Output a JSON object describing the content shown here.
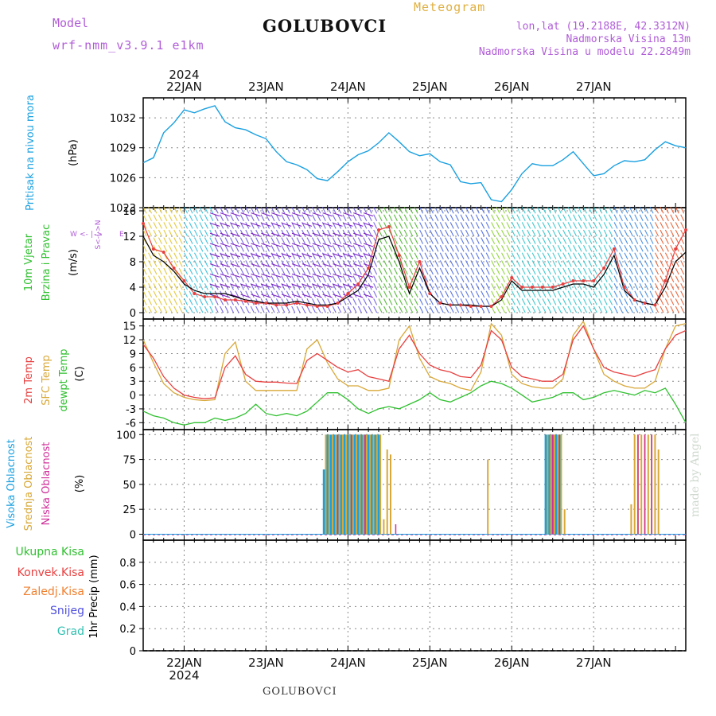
{
  "header": {
    "model_label": "Model",
    "model_name": "wrf-nmm_v3.9.1 e1km",
    "station": "GOLUBOVCI",
    "product": "Meteogram",
    "coords": "lon,lat (19.2188E, 42.3312N)",
    "elevation": "Nadmorska Visina 13m",
    "model_elevation": "Nadmorska Visina u modelu 22.2849m",
    "year": "2024"
  },
  "footer": {
    "station": "GOLUBOVCI",
    "credit": "made by Angel"
  },
  "colors": {
    "pressure": "#1aa0e0",
    "temp2m": "#e84040",
    "sfc": "#d8a838",
    "dewpt": "#30c030",
    "high_cloud": "#1aa0e0",
    "mid_cloud": "#d8a838",
    "low_cloud": "#d0309a",
    "wind_speed": "#000000",
    "gust": "#e84040",
    "feather": "#8020c0"
  },
  "chart_data": [
    {
      "type": "line",
      "panel": "pressure",
      "ylabel": "Pritisak na nivou mora",
      "unit": "(hPa)",
      "ylim": [
        1023,
        1034
      ],
      "yticks": [
        1023,
        1026,
        1029,
        1032
      ],
      "x_dates": [
        "22JAN",
        "23JAN",
        "24JAN",
        "25JAN",
        "26JAN",
        "27JAN"
      ],
      "x_hours": [
        0,
        6,
        12,
        18,
        24,
        30,
        36,
        42,
        48,
        54,
        60,
        66,
        72,
        78,
        84,
        90,
        96,
        102,
        108,
        114,
        120,
        126,
        132,
        138
      ],
      "x_offset_hours": -12,
      "x_values": [
        -12,
        -9,
        -6,
        -3,
        0,
        3,
        6,
        9,
        12,
        15,
        18,
        21,
        24,
        27,
        30,
        33,
        36,
        39,
        42,
        45,
        48,
        51,
        54,
        57,
        60,
        63,
        66,
        69,
        72,
        75,
        78,
        81,
        84,
        87,
        90,
        93,
        96,
        99,
        102,
        105,
        108,
        111,
        114,
        117,
        120,
        123,
        126,
        129,
        132,
        135,
        138,
        141,
        144,
        147
      ],
      "series": [
        {
          "values": [
            1027.5,
            1028.0,
            1030.5,
            1031.5,
            1032.8,
            1032.5,
            1032.9,
            1033.2,
            1031.6,
            1031.0,
            1030.8,
            1030.3,
            1029.9,
            1028.6,
            1027.6,
            1027.3,
            1026.8,
            1025.9,
            1025.7,
            1026.6,
            1027.6,
            1028.3,
            1028.7,
            1029.5,
            1030.5,
            1029.6,
            1028.6,
            1028.2,
            1028.4,
            1027.6,
            1027.3,
            1025.6,
            1025.4,
            1025.5,
            1023.8,
            1023.6,
            1024.8,
            1026.4,
            1027.4,
            1027.2,
            1027.2,
            1027.8,
            1028.6,
            1027.4,
            1026.2,
            1026.4,
            1027.2,
            1027.7,
            1027.6,
            1027.8,
            1028.8,
            1029.6,
            1029.2,
            1029.0
          ]
        }
      ]
    },
    {
      "type": "line",
      "panel": "wind",
      "ylabel": "10m Vjetar Brzina i Pravac",
      "unit": "(m/s)",
      "ylim": [
        -1,
        16.5
      ],
      "yticks": [
        0,
        4,
        8,
        12,
        16
      ],
      "compass_labels": [
        "W",
        "<-",
        "|",
        "->",
        "E",
        "S<-|->N"
      ],
      "x_values": [
        -12,
        -9,
        -6,
        -3,
        0,
        3,
        6,
        9,
        12,
        15,
        18,
        21,
        24,
        27,
        30,
        33,
        36,
        39,
        42,
        45,
        48,
        51,
        54,
        57,
        60,
        63,
        66,
        69,
        72,
        75,
        78,
        81,
        84,
        87,
        90,
        93,
        96,
        99,
        102,
        105,
        108,
        111,
        114,
        117,
        120,
        123,
        126,
        129,
        132,
        135,
        138,
        141,
        144,
        147
      ],
      "series": [
        {
          "name_key": "speed",
          "values": [
            12.0,
            9.0,
            8.0,
            6.5,
            4.5,
            3.5,
            3.0,
            3.0,
            3.0,
            2.5,
            2.0,
            1.8,
            1.5,
            1.5,
            1.5,
            1.8,
            1.5,
            1.2,
            1.2,
            1.5,
            2.5,
            3.5,
            6.0,
            11.5,
            12.0,
            8.0,
            3.0,
            7.0,
            3.0,
            1.5,
            1.2,
            1.2,
            1.2,
            1.0,
            1.0,
            2.0,
            5.0,
            3.5,
            3.5,
            3.5,
            3.5,
            4.0,
            4.5,
            4.5,
            4.0,
            6.0,
            9.0,
            3.5,
            2.0,
            1.5,
            1.2,
            4.0,
            8.0,
            9.5
          ]
        },
        {
          "name_key": "gust",
          "values": [
            14.0,
            10.0,
            9.5,
            7.0,
            5.0,
            3.0,
            2.5,
            2.5,
            2.0,
            2.0,
            1.8,
            1.5,
            1.5,
            1.2,
            1.2,
            1.5,
            1.2,
            1.0,
            1.0,
            1.5,
            3.0,
            4.5,
            7.0,
            13.0,
            13.5,
            9.0,
            4.0,
            8.0,
            3.0,
            1.5,
            1.2,
            1.2,
            1.0,
            1.0,
            1.0,
            2.5,
            5.5,
            4.0,
            4.0,
            4.0,
            4.0,
            4.5,
            5.0,
            5.0,
            5.0,
            7.0,
            10.0,
            4.0,
            2.0,
            1.5,
            1.2,
            5.0,
            10.0,
            13.0
          ]
        }
      ],
      "direction_regimes": [
        {
          "from_h": -12,
          "to_h": 0,
          "color": "#e0c020"
        },
        {
          "from_h": 0,
          "to_h": 9,
          "color": "#20b8d8"
        },
        {
          "from_h": 9,
          "to_h": 57,
          "color": "#6050e0"
        },
        {
          "from_h": 57,
          "to_h": 69,
          "color": "#40b020"
        },
        {
          "from_h": 69,
          "to_h": 90,
          "color": "#4060e0"
        },
        {
          "from_h": 90,
          "to_h": 96,
          "color": "#80d020"
        },
        {
          "from_h": 96,
          "to_h": 126,
          "color": "#20c0c8"
        },
        {
          "from_h": 126,
          "to_h": 138,
          "color": "#3080e0"
        },
        {
          "from_h": 138,
          "to_h": 147,
          "color": "#e85020"
        }
      ]
    },
    {
      "type": "line",
      "panel": "temperature",
      "ylabels": [
        "2m Temp",
        "SFC Temp",
        "dewpt Temp"
      ],
      "unit": "(C)",
      "ylim": [
        -7.5,
        16.5
      ],
      "yticks": [
        -6,
        -3,
        0,
        3,
        6,
        9,
        12,
        15
      ],
      "x_values": [
        -12,
        -9,
        -6,
        -3,
        0,
        3,
        6,
        9,
        12,
        15,
        18,
        21,
        24,
        27,
        30,
        33,
        36,
        39,
        42,
        45,
        48,
        51,
        54,
        57,
        60,
        63,
        66,
        69,
        72,
        75,
        78,
        81,
        84,
        87,
        90,
        93,
        96,
        99,
        102,
        105,
        108,
        111,
        114,
        117,
        120,
        123,
        126,
        129,
        132,
        135,
        138,
        141,
        144,
        147
      ],
      "series": [
        {
          "name_key": "temp2m",
          "values": [
            11.0,
            8.0,
            4.0,
            1.5,
            0.0,
            -0.5,
            -0.8,
            -0.6,
            6.0,
            8.5,
            4.5,
            3.0,
            2.8,
            2.8,
            2.6,
            2.5,
            7.5,
            9.0,
            7.5,
            6.0,
            5.0,
            5.5,
            4.0,
            3.5,
            3.0,
            10.0,
            13.0,
            9.0,
            6.5,
            5.5,
            5.0,
            4.0,
            3.8,
            6.5,
            14.0,
            12.0,
            6.0,
            4.0,
            3.5,
            3.0,
            3.0,
            4.5,
            12.0,
            15.0,
            10.0,
            6.0,
            5.0,
            4.5,
            4.0,
            4.8,
            5.5,
            10.0,
            13.0,
            14.0
          ]
        },
        {
          "name_key": "sfc",
          "values": [
            12.0,
            7.0,
            2.5,
            0.5,
            -0.5,
            -1.0,
            -1.2,
            -1.0,
            9.0,
            11.5,
            3.0,
            1.0,
            1.0,
            1.0,
            1.0,
            1.0,
            10.0,
            12.0,
            7.0,
            3.5,
            2.0,
            2.0,
            1.0,
            1.0,
            1.5,
            12.0,
            15.0,
            8.0,
            4.0,
            3.0,
            2.5,
            1.5,
            1.0,
            5.0,
            15.5,
            13.0,
            4.5,
            2.5,
            1.8,
            1.5,
            1.5,
            3.5,
            13.0,
            16.0,
            10.0,
            4.5,
            3.0,
            2.0,
            1.5,
            1.5,
            3.0,
            10.0,
            15.0,
            15.5
          ]
        },
        {
          "name_key": "dewpt",
          "values": [
            -3.5,
            -4.5,
            -5.0,
            -6.0,
            -6.5,
            -6.0,
            -6.0,
            -5.0,
            -5.5,
            -5.0,
            -4.0,
            -2.0,
            -4.0,
            -4.5,
            -4.0,
            -4.5,
            -3.5,
            -1.5,
            0.5,
            0.5,
            -1.0,
            -3.0,
            -4.0,
            -3.0,
            -2.5,
            -3.0,
            -2.0,
            -1.0,
            0.5,
            -1.0,
            -1.5,
            -0.5,
            0.5,
            2.0,
            3.0,
            2.5,
            1.5,
            0.0,
            -1.5,
            -1.0,
            -0.5,
            0.5,
            0.5,
            -1.0,
            -0.5,
            0.5,
            1.0,
            0.5,
            0.0,
            1.0,
            0.5,
            1.5,
            -2.0,
            -6.0
          ]
        }
      ]
    },
    {
      "type": "bar",
      "panel": "cloud",
      "ylabels": [
        "Visoka Oblacnost",
        "Srednja Oblacnost",
        "Niska Oblacnost"
      ],
      "unit": "(%)",
      "ylim": [
        -6,
        105
      ],
      "yticks": [
        0,
        25,
        50,
        75,
        100
      ],
      "series": [
        {
          "name_key": "high",
          "x": [
            41,
            42,
            43,
            44,
            45,
            46,
            47,
            48,
            49,
            50,
            51,
            52,
            53,
            54,
            55,
            56,
            57,
            106,
            107,
            108,
            109,
            110
          ],
          "values": [
            65,
            100,
            100,
            100,
            100,
            100,
            100,
            100,
            100,
            100,
            100,
            100,
            100,
            100,
            100,
            100,
            100,
            100,
            100,
            100,
            100,
            100
          ]
        },
        {
          "name_key": "mid",
          "x": [
            41.5,
            42.5,
            43.5,
            44.5,
            45.5,
            46.5,
            47.5,
            48.5,
            49.5,
            50.5,
            51.5,
            52.5,
            53.5,
            54.5,
            55.5,
            56.5,
            57.5,
            58.5,
            59.5,
            60.5,
            89,
            106.5,
            107.5,
            108.5,
            109.5,
            110.5,
            111.5,
            131,
            132,
            133,
            134,
            135,
            136,
            137,
            138,
            139
          ],
          "values": [
            100,
            100,
            100,
            100,
            100,
            100,
            100,
            100,
            100,
            100,
            100,
            100,
            100,
            100,
            100,
            100,
            100,
            15,
            85,
            80,
            75,
            100,
            100,
            100,
            100,
            100,
            25,
            30,
            100,
            100,
            100,
            100,
            100,
            100,
            100,
            85
          ]
        },
        {
          "name_key": "low",
          "x": [
            45,
            49,
            53,
            62,
            108,
            110,
            133,
            135,
            137
          ],
          "values": [
            100,
            100,
            100,
            10,
            100,
            100,
            100,
            100,
            100
          ]
        }
      ]
    },
    {
      "type": "line",
      "panel": "precip",
      "ylabel": "1hr Precip",
      "unit": "(mm)",
      "legend": [
        "Ukupna Kisa",
        "Konvek.Kisa",
        "Zaledj.Kisa",
        "Snijeg",
        "Grad"
      ],
      "legend_colors": [
        "#30c030",
        "#e84040",
        "#f08030",
        "#5050e0",
        "#30c0b0"
      ],
      "ylim": [
        0,
        1.0
      ],
      "yticks": [
        0,
        0.2,
        0.4,
        0.6,
        0.8
      ],
      "series": []
    }
  ]
}
